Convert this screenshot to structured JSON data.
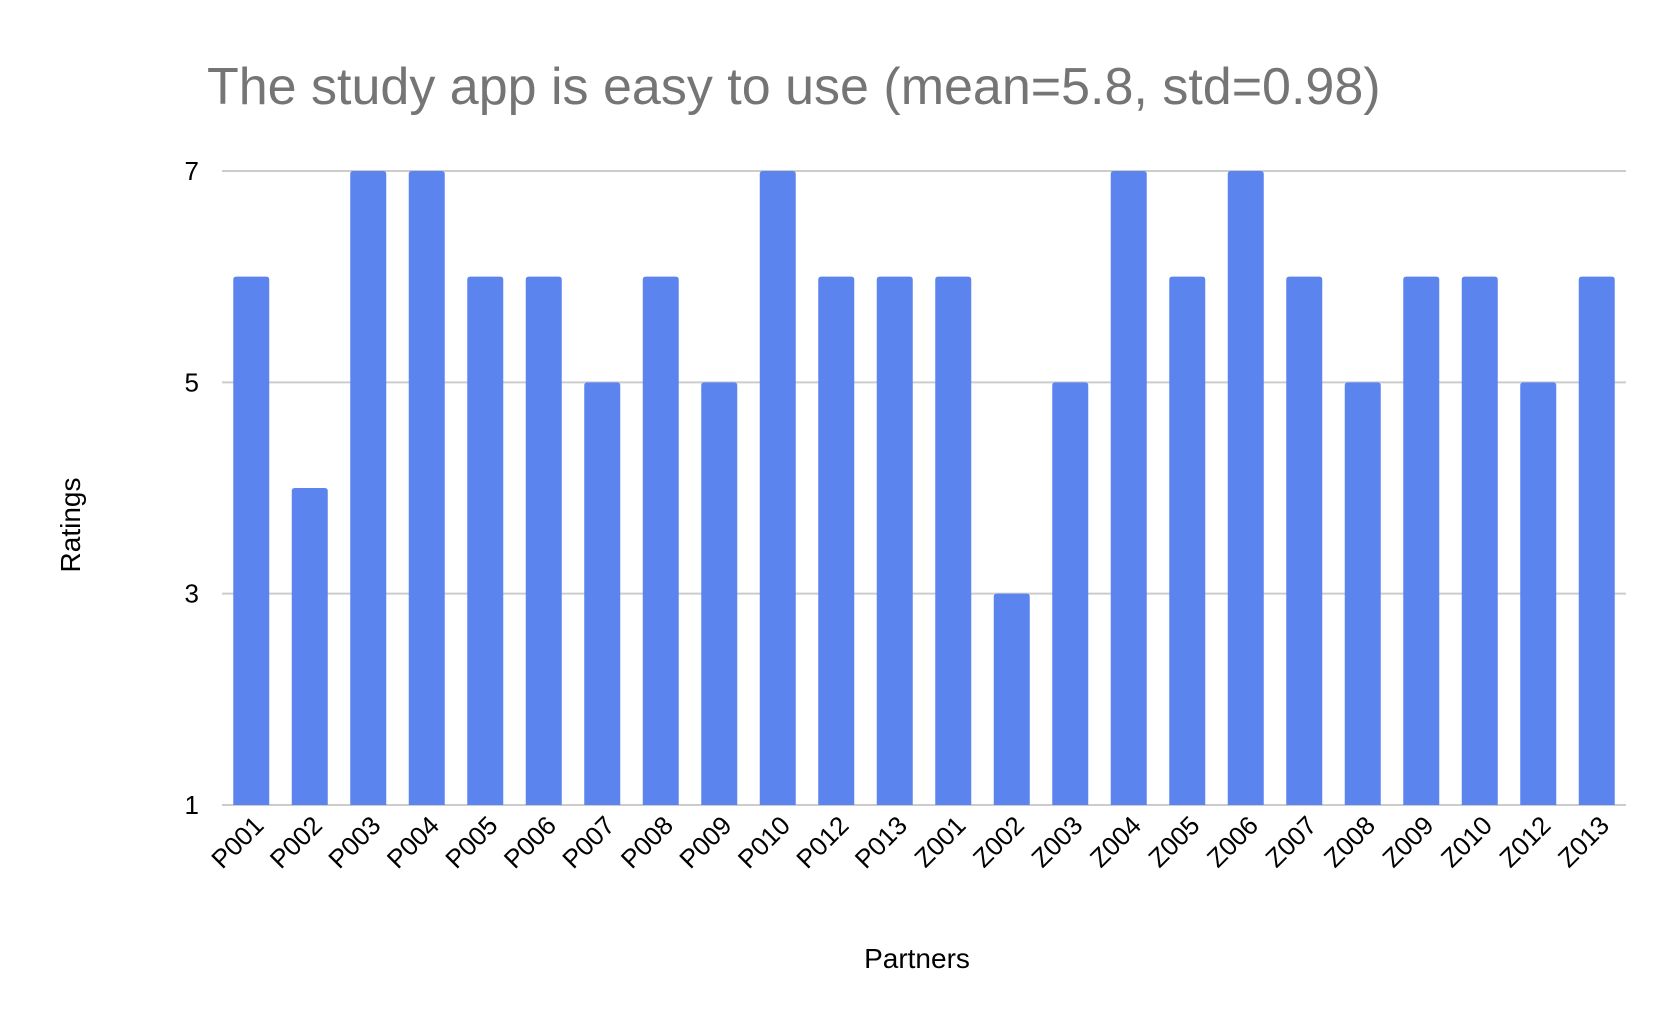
{
  "chart_data": {
    "type": "bar",
    "title": "The study app is easy to use (mean=5.8, std=0.98)",
    "xlabel": "Partners",
    "ylabel": "Ratings",
    "ylim": [
      1,
      7
    ],
    "yticks": [
      1,
      3,
      5,
      7
    ],
    "grid": true,
    "legend": "none",
    "bar_color": "#5b84ef",
    "categories": [
      "P001",
      "P002",
      "P003",
      "P004",
      "P005",
      "P006",
      "P007",
      "P008",
      "P009",
      "P010",
      "P012",
      "P013",
      "Z001",
      "Z002",
      "Z003",
      "Z004",
      "Z005",
      "Z006",
      "Z007",
      "Z008",
      "Z009",
      "Z010",
      "Z012",
      "Z013"
    ],
    "values": [
      6,
      4,
      7,
      7,
      6,
      6,
      5,
      6,
      5,
      7,
      6,
      6,
      6,
      3,
      5,
      7,
      6,
      7,
      6,
      5,
      6,
      6,
      5,
      6
    ]
  }
}
